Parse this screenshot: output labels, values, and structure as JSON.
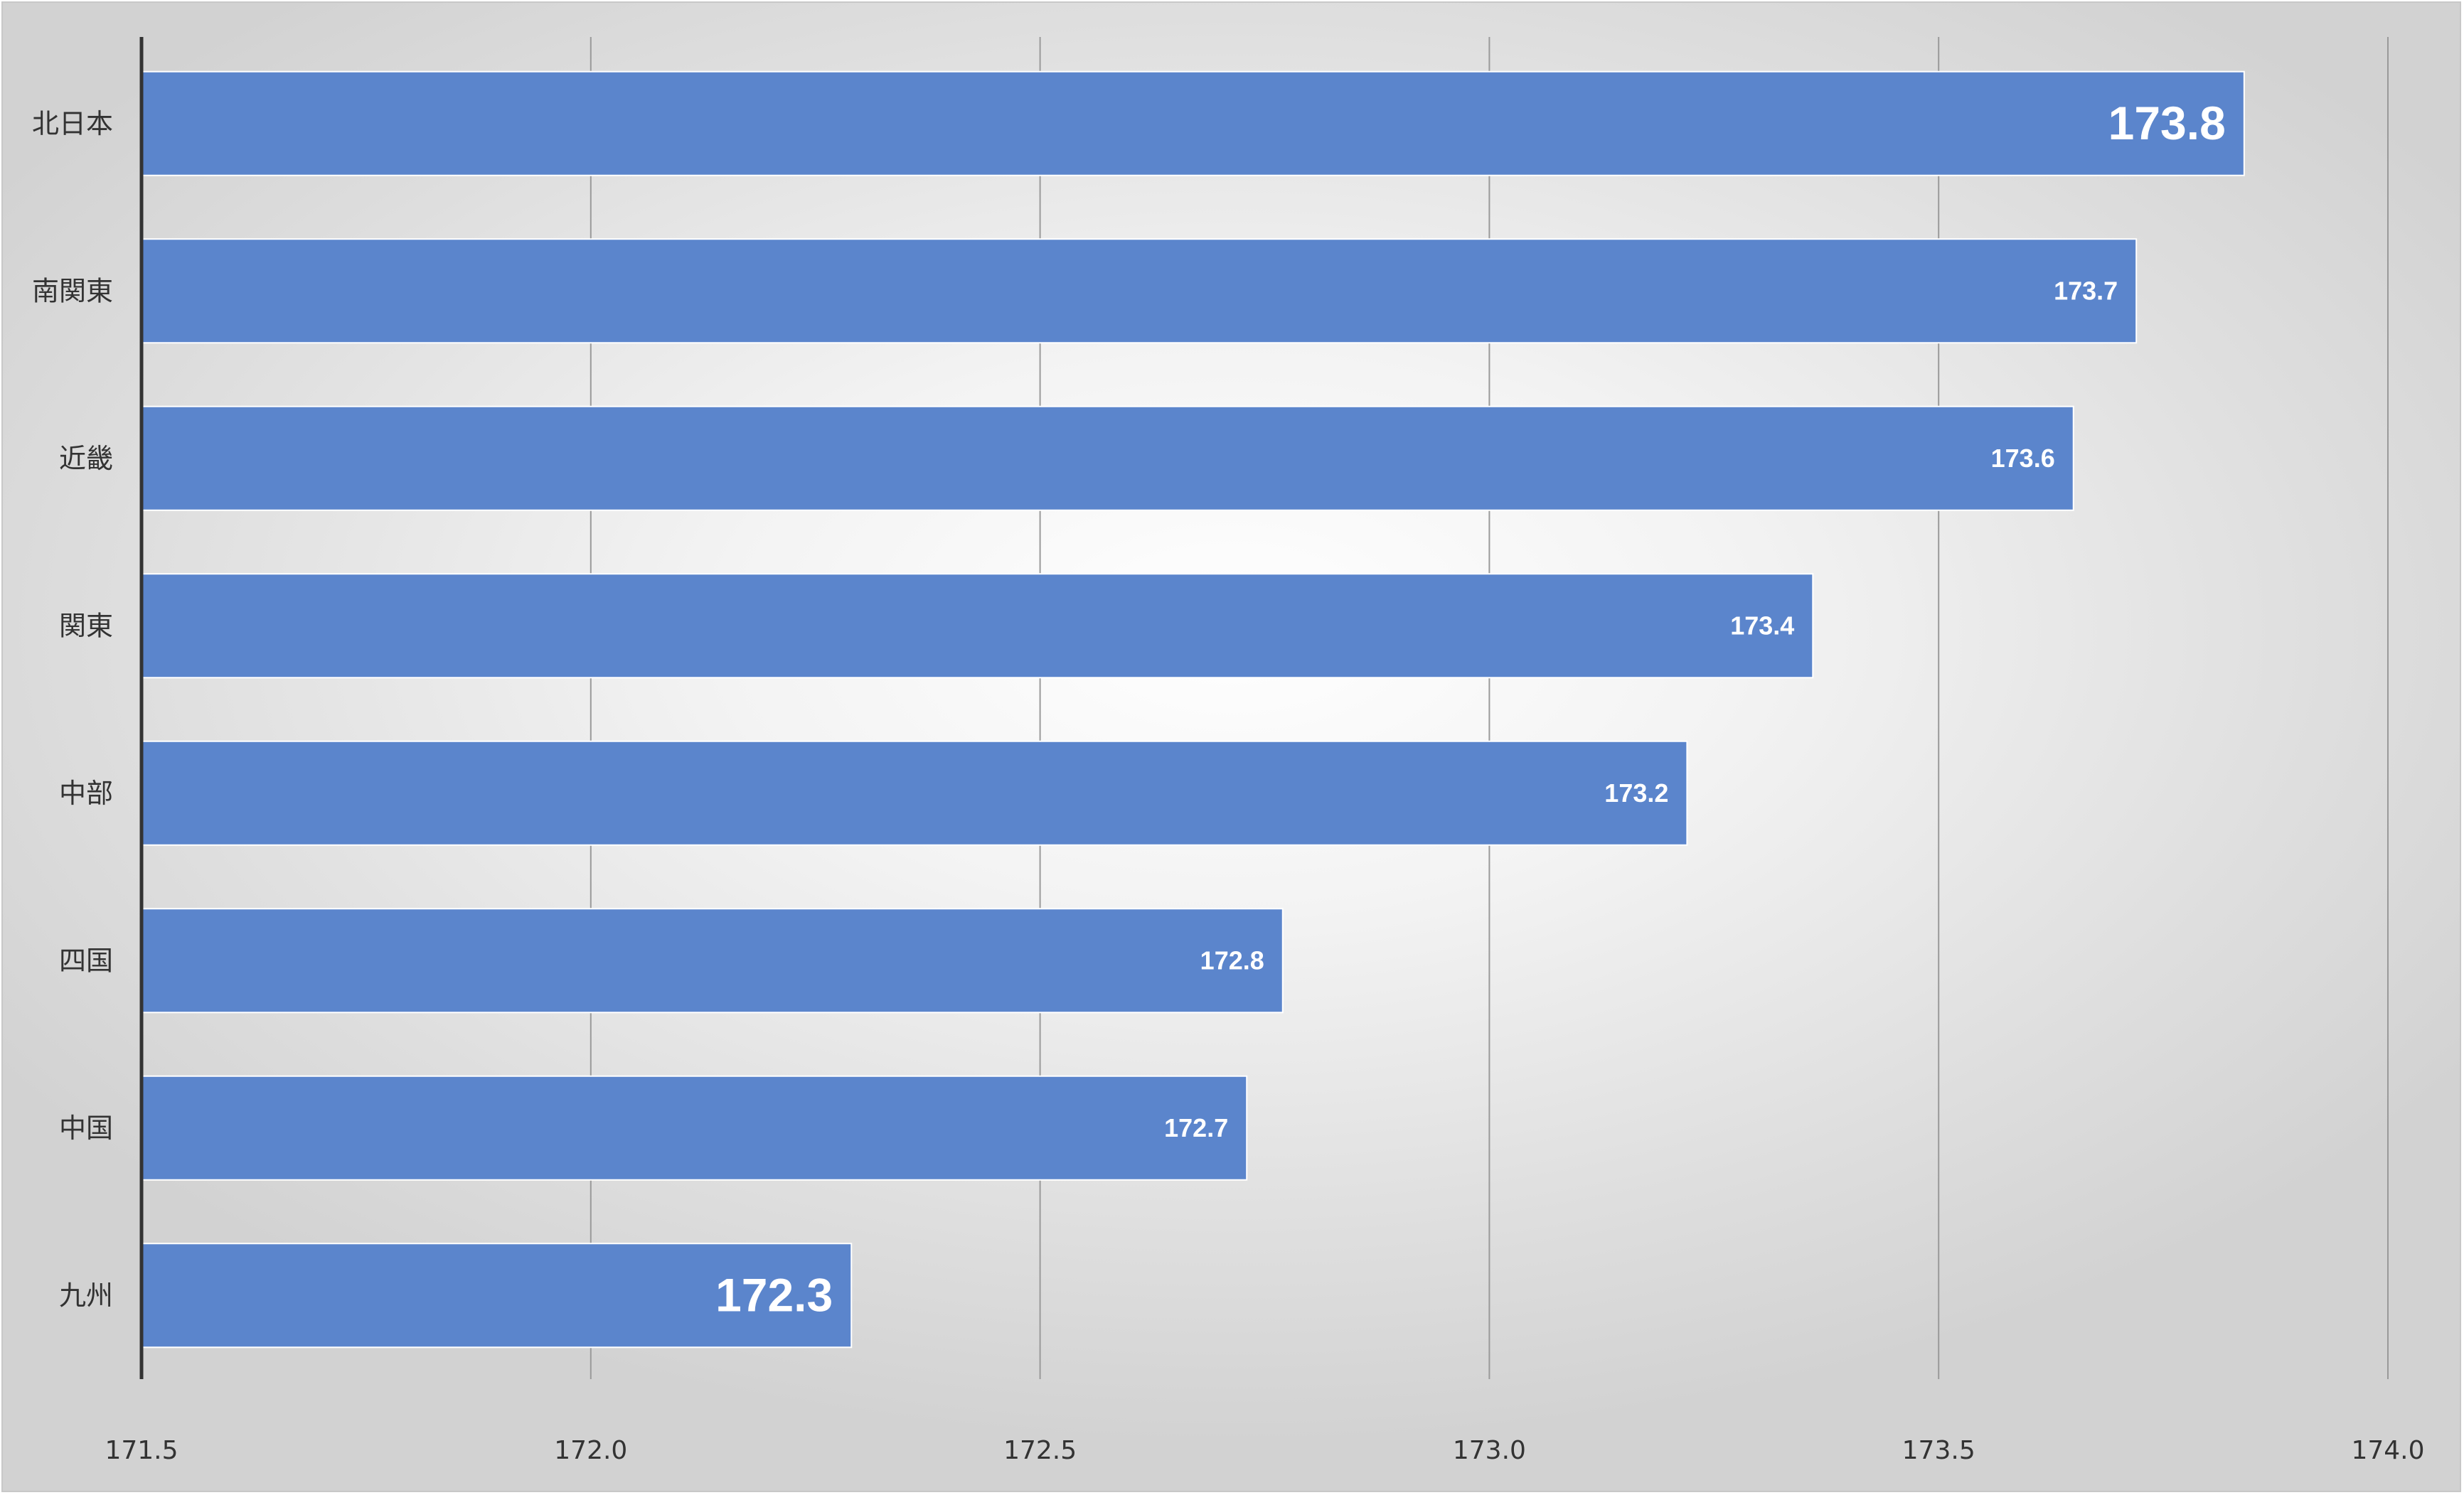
{
  "chart_data": {
    "type": "bar",
    "orientation": "horizontal",
    "categories": [
      "北日本",
      "南関東",
      "近畿",
      "関東",
      "中部",
      "四国",
      "中国",
      "九州"
    ],
    "values": [
      173.84,
      173.72,
      173.65,
      173.36,
      173.22,
      172.77,
      172.73,
      172.29
    ],
    "data_labels": [
      "173.8",
      "173.7",
      "173.6",
      "173.4",
      "173.2",
      "172.8",
      "172.7",
      "172.3"
    ],
    "highlighted_labels": [
      0,
      7
    ],
    "xlim": [
      171.5,
      174.0
    ],
    "x_ticks": [
      "171.5",
      "172.0",
      "172.5",
      "173.0",
      "173.5",
      "174.0"
    ],
    "x_tick_values": [
      171.5,
      172.0,
      172.5,
      173.0,
      173.5,
      174.0
    ],
    "grid": "vertical",
    "legend": "none",
    "title": "",
    "xlabel": "",
    "ylabel": "",
    "colors": {
      "bar": "#5b85cc",
      "bar_edge": "#ffffff",
      "grid": "#9a9a9a",
      "axis": "#333333",
      "label": "#333333",
      "data_label": "#ffffff"
    }
  }
}
